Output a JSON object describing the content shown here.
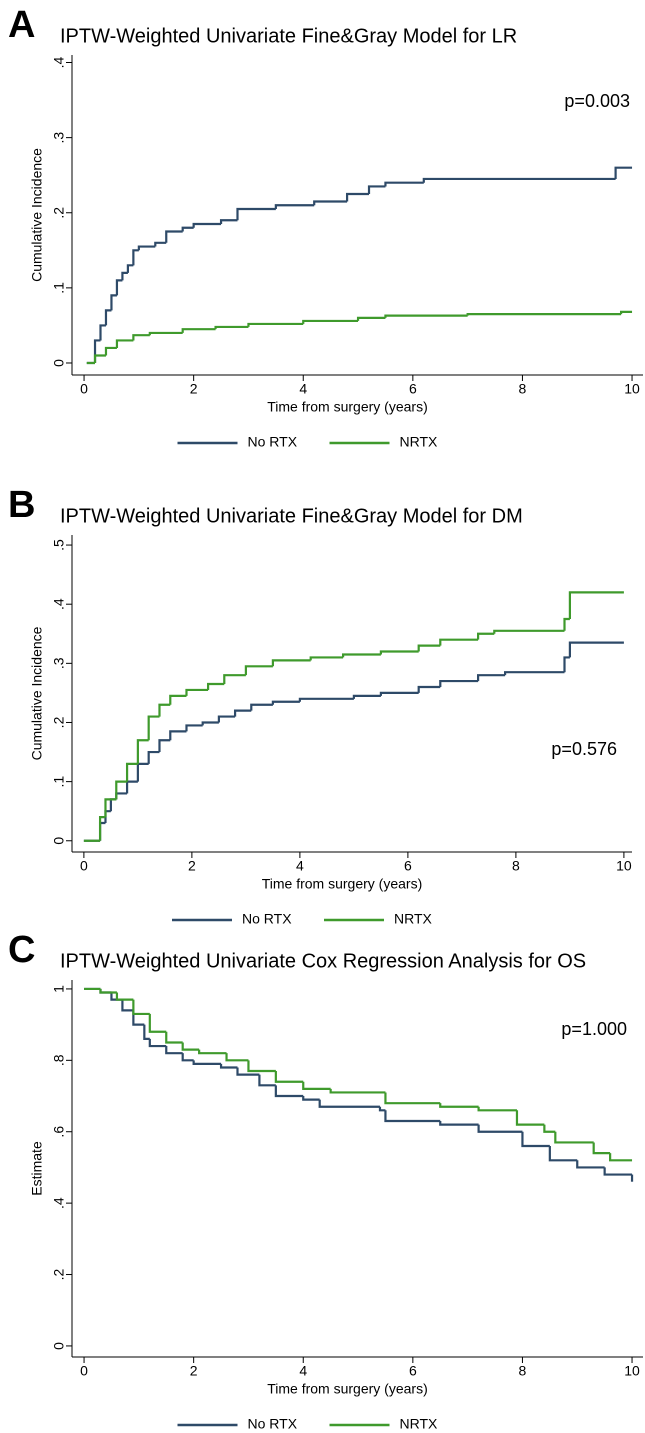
{
  "chart_data": [
    {
      "type": "line",
      "step": "post",
      "panel_label": "A",
      "title": "IPTW-Weighted Univariate Fine&Gray Model for LR",
      "annotation": "p=0.003",
      "xlabel": "Time from surgery (years)",
      "ylabel": "Cumulative Incidence",
      "xlim": [
        -0.22,
        10.2
      ],
      "xticks": [
        0,
        2,
        4,
        6,
        8,
        10
      ],
      "ylim": [
        -0.016,
        0.41
      ],
      "yticks": [
        0,
        {
          "value": 0.1,
          "label": ".1"
        },
        {
          "value": 0.2,
          "label": ".2"
        },
        {
          "value": 0.3,
          "label": ".3"
        },
        {
          "value": 0.4,
          "label": ".4"
        }
      ],
      "series": [
        {
          "name": "No RTX",
          "color": "#2e4a68",
          "x": [
            0.05,
            0.2,
            0.3,
            0.4,
            0.5,
            0.6,
            0.7,
            0.8,
            0.9,
            1.0,
            1.3,
            1.5,
            1.8,
            2.0,
            2.5,
            2.8,
            3.5,
            4.2,
            4.8,
            5.2,
            5.5,
            6.2,
            9.7,
            10
          ],
          "values": [
            0,
            0.03,
            0.05,
            0.07,
            0.09,
            0.11,
            0.12,
            0.13,
            0.15,
            0.155,
            0.16,
            0.175,
            0.18,
            0.185,
            0.19,
            0.205,
            0.21,
            0.215,
            0.225,
            0.235,
            0.24,
            0.245,
            0.26,
            0.26
          ]
        },
        {
          "name": "NRTX",
          "color": "#3f9a2c",
          "x": [
            0.05,
            0.2,
            0.4,
            0.6,
            0.9,
            1.2,
            1.8,
            2.4,
            3,
            4,
            5,
            5.5,
            7,
            9.8,
            10
          ],
          "values": [
            0,
            0.01,
            0.02,
            0.03,
            0.037,
            0.04,
            0.045,
            0.048,
            0.052,
            0.056,
            0.06,
            0.063,
            0.065,
            0.068,
            0.068
          ]
        }
      ]
    },
    {
      "type": "line",
      "step": "post",
      "panel_label": "B",
      "title": "IPTW-Weighted Univariate Fine&Gray Model for DM",
      "annotation": "p=0.576",
      "xlabel": "Time from surgery (years)",
      "ylabel": "Cumulative Incidence",
      "xlim": [
        -0.22,
        10.15
      ],
      "xticks": [
        0,
        2,
        4,
        6,
        8,
        10
      ],
      "ylim": [
        -0.019,
        0.517
      ],
      "yticks": [
        0,
        {
          "value": 0.1,
          "label": ".1"
        },
        {
          "value": 0.2,
          "label": ".2"
        },
        {
          "value": 0.3,
          "label": ".3"
        },
        {
          "value": 0.4,
          "label": ".4"
        },
        {
          "value": 0.5,
          "label": ".5"
        }
      ],
      "series": [
        {
          "name": "No RTX",
          "color": "#2e4a68",
          "x": [
            0,
            0.25,
            0.3,
            0.4,
            0.5,
            0.6,
            0.8,
            1.0,
            1.2,
            1.4,
            1.6,
            1.9,
            2.2,
            2.5,
            2.8,
            3.1,
            3.5,
            4,
            5,
            5.5,
            6.2,
            6.6,
            7.3,
            7.8,
            8.9,
            9,
            10
          ],
          "values": [
            0,
            0,
            0.03,
            0.05,
            0.07,
            0.08,
            0.1,
            0.13,
            0.15,
            0.17,
            0.185,
            0.195,
            0.2,
            0.21,
            0.22,
            0.23,
            0.235,
            0.24,
            0.245,
            0.25,
            0.26,
            0.27,
            0.28,
            0.285,
            0.31,
            0.335,
            0.335
          ]
        },
        {
          "name": "NRTX",
          "color": "#3f9a2c",
          "x": [
            0,
            0.25,
            0.3,
            0.4,
            0.6,
            0.8,
            1.0,
            1.2,
            1.4,
            1.6,
            1.9,
            2.3,
            2.6,
            3,
            3.5,
            4.2,
            4.8,
            5.5,
            6.2,
            6.6,
            7.3,
            7.6,
            8.9,
            9,
            10
          ],
          "values": [
            0,
            0,
            0.04,
            0.07,
            0.1,
            0.13,
            0.17,
            0.21,
            0.23,
            0.245,
            0.255,
            0.265,
            0.28,
            0.295,
            0.305,
            0.31,
            0.315,
            0.32,
            0.33,
            0.34,
            0.35,
            0.355,
            0.375,
            0.42,
            0.42
          ]
        }
      ]
    },
    {
      "type": "line",
      "step": "post",
      "panel_label": "C",
      "title": "IPTW-Weighted Univariate Cox Regression Analysis for OS",
      "annotation": "p=1.000",
      "xlabel": "Time from surgery (years)",
      "ylabel": "Estimate",
      "xlim": [
        -0.22,
        10.2
      ],
      "xticks": [
        0,
        2,
        4,
        6,
        8,
        10
      ],
      "ylim": [
        -0.031,
        1.025
      ],
      "yticks": [
        0,
        {
          "value": 0.2,
          "label": ".2"
        },
        {
          "value": 0.4,
          "label": ".4"
        },
        {
          "value": 0.6,
          "label": ".6"
        },
        {
          "value": 0.8,
          "label": ".8"
        },
        1
      ],
      "series": [
        {
          "name": "No RTX",
          "color": "#2e4a68",
          "x": [
            0,
            0.3,
            0.5,
            0.7,
            0.9,
            1.1,
            1.2,
            1.5,
            1.8,
            2,
            2.5,
            2.8,
            3.2,
            3.5,
            4,
            4.3,
            5.4,
            5.5,
            6.5,
            7.2,
            8,
            8.5,
            9,
            9.5,
            10
          ],
          "values": [
            1,
            0.99,
            0.97,
            0.94,
            0.9,
            0.86,
            0.84,
            0.82,
            0.8,
            0.79,
            0.78,
            0.76,
            0.73,
            0.7,
            0.69,
            0.67,
            0.66,
            0.63,
            0.62,
            0.6,
            0.56,
            0.52,
            0.5,
            0.48,
            0.46
          ]
        },
        {
          "name": "NRTX",
          "color": "#3f9a2c",
          "x": [
            0,
            0.3,
            0.6,
            0.9,
            1.2,
            1.5,
            1.8,
            2.1,
            2.6,
            3,
            3.5,
            4,
            4.5,
            5.5,
            6.5,
            7.2,
            7.9,
            8.4,
            8.6,
            9.3,
            9.6,
            10
          ],
          "values": [
            1,
            0.99,
            0.97,
            0.93,
            0.88,
            0.85,
            0.83,
            0.82,
            0.8,
            0.77,
            0.74,
            0.72,
            0.71,
            0.68,
            0.67,
            0.66,
            0.62,
            0.6,
            0.57,
            0.54,
            0.52,
            0.52
          ]
        }
      ]
    }
  ]
}
